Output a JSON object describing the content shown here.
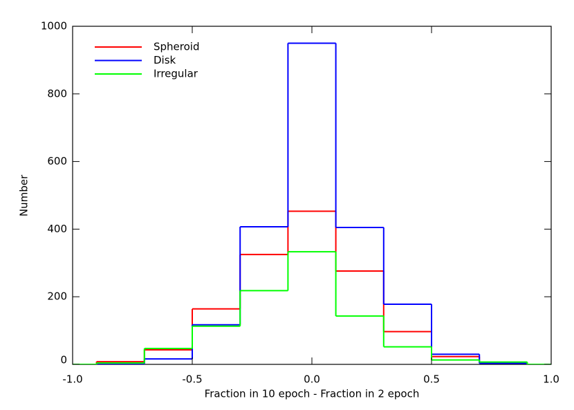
{
  "chart_data": {
    "type": "histogram",
    "x_label": "Fraction in 10 epoch - Fraction in 2 epoch",
    "y_label": "Number",
    "bins": [
      -1.1,
      -0.9,
      -0.7,
      -0.5,
      -0.3,
      -0.1,
      0.1,
      0.3,
      0.5,
      0.7,
      0.9,
      1.1
    ],
    "series": [
      {
        "name": "Spheroid",
        "color": "#ff0000",
        "values": [
          0,
          8,
          43,
          164,
          325,
          453,
          276,
          97,
          23,
          6,
          0
        ]
      },
      {
        "name": "Disk",
        "color": "#0000ff",
        "values": [
          0,
          2,
          16,
          117,
          407,
          950,
          405,
          178,
          30,
          3,
          0
        ]
      },
      {
        "name": "Irregular",
        "color": "#00ff00",
        "values": [
          0,
          4,
          47,
          113,
          218,
          333,
          143,
          52,
          13,
          7,
          0
        ]
      }
    ],
    "xlim": [
      -1,
      1
    ],
    "ylim": [
      0,
      1000
    ],
    "xticks": [
      {
        "value": -1,
        "label": "-1.0"
      },
      {
        "value": -0.5,
        "label": "-0.5"
      },
      {
        "value": 0,
        "label": "0.0"
      },
      {
        "value": 0.5,
        "label": "0.5"
      },
      {
        "value": 1,
        "label": "1.0"
      }
    ],
    "yticks": [
      0,
      200,
      400,
      600,
      800,
      1000
    ],
    "legend": "upper-left"
  }
}
